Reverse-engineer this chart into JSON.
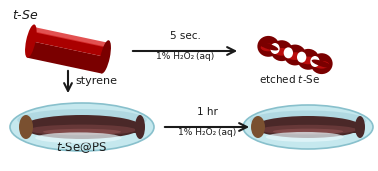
{
  "bg_color": "#ffffff",
  "se_dark": "#7a0000",
  "se_mid": "#aa0000",
  "se_light": "#cc1111",
  "se_highlight": "#dd3333",
  "ps_fill": "#c5e8ee",
  "ps_edge": "#88c0cc",
  "ps_highlight": "#e8f8fc",
  "core_dark": "#4a2828",
  "core_mid": "#6b3a3a",
  "core_light": "#8b5050",
  "core_cap": "#7a5030",
  "arrow_color": "#1a1a1a",
  "text_color": "#1a1a1a",
  "label_tse": "$t$-Se",
  "label_etched": "etched $t$-Se",
  "label_styrene": "styrene",
  "label_tseps": "$t$-Se@PS",
  "top_line1": "5 sec.",
  "top_line2": "1% H₂O₂ (aq)",
  "bot_line1": "1 hr",
  "bot_line2": "1% H₂O₂ (aq)"
}
